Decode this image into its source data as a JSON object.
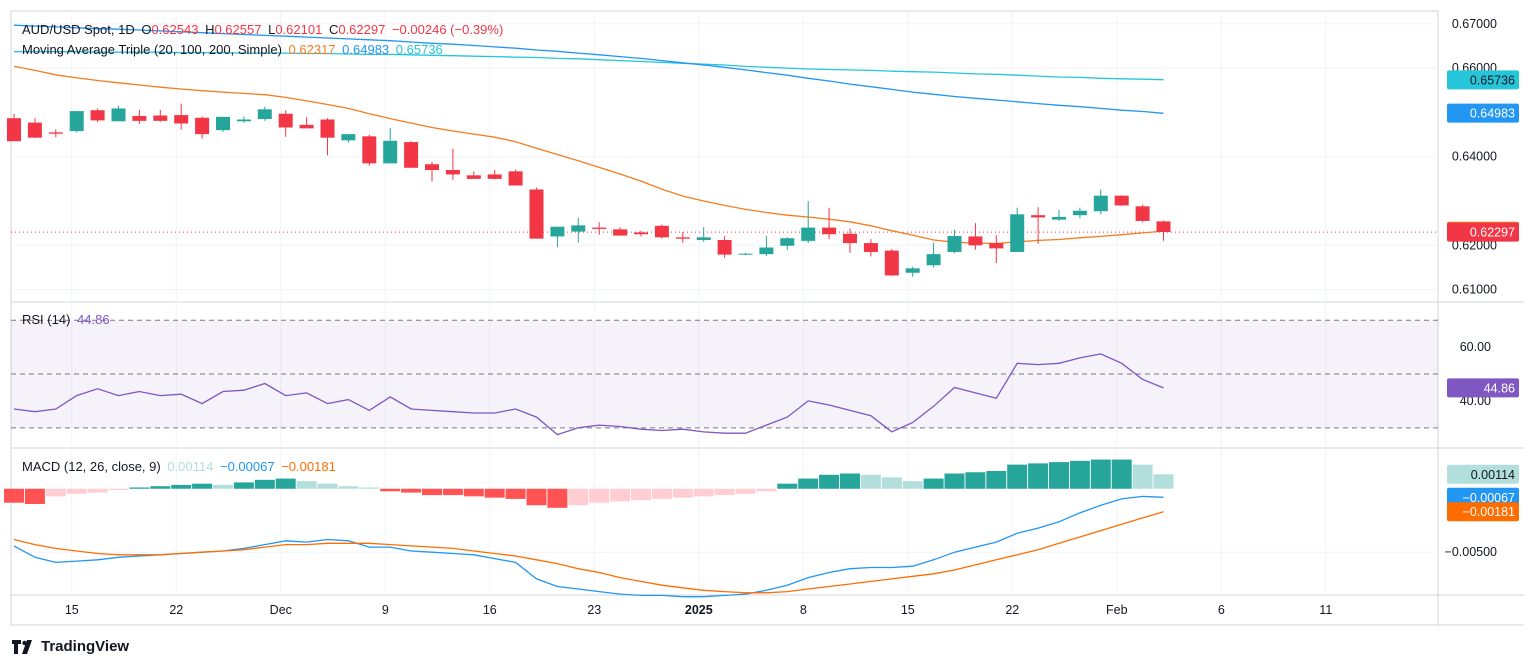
{
  "header": {
    "symbol": "AUD/USD Spot, 1D",
    "o_label": "O",
    "o_value": "0.62543",
    "h_label": "H",
    "h_value": "0.62557",
    "l_label": "L",
    "l_value": "0.62101",
    "c_label": "C",
    "c_value": "0.62297",
    "change": "−0.00246 (−0.39%)",
    "ma_label": "Moving Average Triple (20, 100, 200, Simple)",
    "ma20": "0.62317",
    "ma100": "0.64983",
    "ma200": "0.65736",
    "rsi_label": "RSI (14)",
    "rsi_value": "44.86",
    "macd_label": "MACD (12, 26, close, 9)",
    "macd_hist": "0.00114",
    "macd_line": "−0.00067",
    "macd_signal": "−0.00181"
  },
  "brand": {
    "name": "TradingView"
  },
  "colors": {
    "up": "#26a69a",
    "down": "#f23645",
    "ma20": "#f57c1f",
    "ma100": "#2196f3",
    "ma200": "#26c6da",
    "rsi": "#7e57c2",
    "macd": "#2196f3",
    "signal": "#ff6d00",
    "hist_up_strong": "#26a69a",
    "hist_up_weak": "#b2dfdb",
    "hist_down_strong": "#ff5252",
    "hist_down_weak": "#ffcdd2"
  },
  "chart_data": [
    {
      "type": "candlestick",
      "title": "AUD/USD Spot, 1D",
      "x_ticks": [
        "15",
        "22",
        "Dec",
        "9",
        "16",
        "23",
        "2025",
        "8",
        "15",
        "22",
        "Feb",
        "6",
        "11"
      ],
      "y_ticks": [
        "0.67000",
        "0.66000",
        "0.64000",
        "0.62000",
        "0.61000"
      ],
      "ylim": [
        0.6072,
        0.6729
      ],
      "ohlc": [
        [
          0.6487,
          0.6497,
          0.6438,
          0.6435
        ],
        [
          0.6477,
          0.6487,
          0.6442,
          0.6443
        ],
        [
          0.6455,
          0.6462,
          0.6444,
          0.6452
        ],
        [
          0.6458,
          0.6502,
          0.6455,
          0.6503
        ],
        [
          0.6505,
          0.6509,
          0.6478,
          0.6482
        ],
        [
          0.648,
          0.6515,
          0.6483,
          0.6509
        ],
        [
          0.6492,
          0.6506,
          0.6474,
          0.6481
        ],
        [
          0.6493,
          0.6506,
          0.6479,
          0.6481
        ],
        [
          0.6494,
          0.652,
          0.6461,
          0.6475
        ],
        [
          0.6488,
          0.6491,
          0.6441,
          0.6451
        ],
        [
          0.646,
          0.649,
          0.6456,
          0.649
        ],
        [
          0.648,
          0.6491,
          0.6476,
          0.6484
        ],
        [
          0.6485,
          0.6513,
          0.6481,
          0.6507
        ],
        [
          0.6497,
          0.6505,
          0.6445,
          0.6466
        ],
        [
          0.6472,
          0.6489,
          0.6466,
          0.6464
        ],
        [
          0.6484,
          0.6487,
          0.6403,
          0.6443
        ],
        [
          0.6437,
          0.6451,
          0.6432,
          0.6451
        ],
        [
          0.6446,
          0.645,
          0.638,
          0.6385
        ],
        [
          0.6385,
          0.6465,
          0.6385,
          0.6436
        ],
        [
          0.6433,
          0.6435,
          0.6379,
          0.6375
        ],
        [
          0.6383,
          0.6388,
          0.6344,
          0.637
        ],
        [
          0.637,
          0.6418,
          0.6348,
          0.636
        ],
        [
          0.6358,
          0.6367,
          0.6352,
          0.635
        ],
        [
          0.636,
          0.637,
          0.6349,
          0.635
        ],
        [
          0.6367,
          0.6371,
          0.6337,
          0.6335
        ],
        [
          0.6326,
          0.633,
          0.622,
          0.6215
        ],
        [
          0.622,
          0.6236,
          0.6196,
          0.6242
        ],
        [
          0.6231,
          0.6262,
          0.6206,
          0.6245
        ],
        [
          0.624,
          0.6252,
          0.6224,
          0.6237
        ],
        [
          0.6236,
          0.6241,
          0.6222,
          0.6222
        ],
        [
          0.6229,
          0.6233,
          0.622,
          0.6225
        ],
        [
          0.6244,
          0.6247,
          0.6215,
          0.6218
        ],
        [
          0.6218,
          0.623,
          0.6206,
          0.6215
        ],
        [
          0.6212,
          0.6241,
          0.6208,
          0.6218
        ],
        [
          0.6212,
          0.6221,
          0.6172,
          0.6179
        ],
        [
          0.6181,
          0.6183,
          0.6178,
          0.6181
        ],
        [
          0.618,
          0.6221,
          0.6176,
          0.6195
        ],
        [
          0.6199,
          0.6218,
          0.619,
          0.6216
        ],
        [
          0.621,
          0.63,
          0.6205,
          0.624
        ],
        [
          0.624,
          0.6285,
          0.6214,
          0.6225
        ],
        [
          0.6226,
          0.6238,
          0.6183,
          0.6205
        ],
        [
          0.6205,
          0.6214,
          0.6175,
          0.6185
        ],
        [
          0.6188,
          0.6192,
          0.6131,
          0.6132
        ],
        [
          0.6138,
          0.6152,
          0.6129,
          0.6148
        ],
        [
          0.6155,
          0.6206,
          0.615,
          0.618
        ],
        [
          0.6185,
          0.6235,
          0.6182,
          0.6221
        ],
        [
          0.622,
          0.625,
          0.619,
          0.62
        ],
        [
          0.6205,
          0.6223,
          0.616,
          0.6193
        ],
        [
          0.6185,
          0.6285,
          0.6185,
          0.627
        ],
        [
          0.6268,
          0.6286,
          0.6203,
          0.6263
        ],
        [
          0.6258,
          0.628,
          0.6255,
          0.6264
        ],
        [
          0.6268,
          0.6285,
          0.6261,
          0.6278
        ],
        [
          0.6277,
          0.6326,
          0.627,
          0.6312
        ],
        [
          0.6312,
          0.6313,
          0.6289,
          0.629
        ],
        [
          0.6288,
          0.6292,
          0.6252,
          0.6255
        ],
        [
          0.6254,
          0.6256,
          0.621,
          0.623
        ]
      ],
      "ma20": [
        0.6604,
        0.6595,
        0.6585,
        0.6578,
        0.6572,
        0.6567,
        0.6562,
        0.6557,
        0.6553,
        0.6549,
        0.6546,
        0.6543,
        0.654,
        0.6534,
        0.6526,
        0.6518,
        0.6509,
        0.6497,
        0.6486,
        0.6476,
        0.6466,
        0.6458,
        0.6451,
        0.6444,
        0.6434,
        0.6419,
        0.6405,
        0.6391,
        0.6376,
        0.6361,
        0.6345,
        0.6327,
        0.6311,
        0.63,
        0.629,
        0.6281,
        0.6274,
        0.6268,
        0.6264,
        0.6259,
        0.6253,
        0.6244,
        0.6233,
        0.6223,
        0.6212,
        0.6207,
        0.6205,
        0.6204,
        0.6208,
        0.6211,
        0.6213,
        0.6217,
        0.622,
        0.6224,
        0.6228,
        0.6232
      ],
      "ma100": [
        0.6697,
        0.6695,
        0.6693,
        0.6691,
        0.6689,
        0.6688,
        0.6686,
        0.6684,
        0.6682,
        0.668,
        0.6678,
        0.6676,
        0.6674,
        0.6672,
        0.667,
        0.6668,
        0.6666,
        0.6664,
        0.6662,
        0.6659,
        0.6656,
        0.6654,
        0.6651,
        0.6648,
        0.6645,
        0.6641,
        0.6638,
        0.6634,
        0.663,
        0.6626,
        0.6622,
        0.6617,
        0.6612,
        0.6607,
        0.6602,
        0.6596,
        0.659,
        0.6584,
        0.6577,
        0.6571,
        0.6564,
        0.6558,
        0.6552,
        0.6546,
        0.6541,
        0.6536,
        0.6532,
        0.6528,
        0.6524,
        0.652,
        0.6516,
        0.6513,
        0.6509,
        0.6505,
        0.6502,
        0.6498
      ],
      "ma200": [
        0.6637,
        0.6637,
        0.6637,
        0.6637,
        0.6636,
        0.6636,
        0.6636,
        0.6636,
        0.6635,
        0.6635,
        0.6635,
        0.6634,
        0.6634,
        0.6634,
        0.6633,
        0.6633,
        0.6632,
        0.6631,
        0.6631,
        0.663,
        0.6629,
        0.6628,
        0.6627,
        0.6626,
        0.6625,
        0.6624,
        0.6622,
        0.6621,
        0.6619,
        0.6617,
        0.6615,
        0.6613,
        0.6611,
        0.6609,
        0.6607,
        0.6604,
        0.6602,
        0.66,
        0.6598,
        0.6597,
        0.6596,
        0.6595,
        0.6593,
        0.6592,
        0.6591,
        0.6589,
        0.6587,
        0.6586,
        0.6584,
        0.6582,
        0.658,
        0.6579,
        0.6577,
        0.6576,
        0.6575,
        0.6574
      ],
      "last_price": 0.62297
    },
    {
      "type": "line",
      "title": "RSI (14)",
      "y_ticks": [
        "60.00",
        "40.00"
      ],
      "ylim": [
        22.5,
        76.8
      ],
      "bands": [
        70,
        50,
        30
      ],
      "values": [
        37.0,
        36.0,
        37.0,
        42.0,
        44.5,
        42.0,
        43.5,
        42.0,
        42.5,
        39.0,
        43.5,
        44.0,
        46.5,
        42.0,
        43.0,
        39.0,
        40.5,
        36.5,
        41.5,
        37.0,
        36.5,
        36.0,
        35.5,
        35.5,
        37.0,
        34.0,
        27.5,
        30.0,
        31.0,
        30.5,
        29.5,
        29.0,
        29.5,
        28.5,
        28.0,
        28.0,
        31.0,
        34.0,
        40.0,
        38.5,
        36.5,
        34.5,
        28.5,
        32.0,
        38.0,
        45.0,
        43.0,
        41.0,
        54.0,
        53.5,
        54.0,
        56.0,
        57.5,
        54.0,
        48.0,
        44.86
      ]
    },
    {
      "type": "bar",
      "title": "MACD (12, 26, close, 9)",
      "y_ticks": [
        "−0.00500"
      ],
      "ylim": [
        -0.00837,
        0.00321
      ],
      "histogram": [
        -0.0011,
        -0.0012,
        -0.0006,
        -0.0004,
        -0.0003,
        -0.0001,
        0.0001,
        0.0002,
        0.0003,
        0.0004,
        0.0003,
        0.0005,
        0.0007,
        0.0008,
        0.0006,
        0.0004,
        0.0002,
        0.0001,
        -0.0002,
        -0.0003,
        -0.0005,
        -0.0005,
        -0.0006,
        -0.0007,
        -0.0008,
        -0.0013,
        -0.0015,
        -0.0013,
        -0.0011,
        -0.001,
        -0.0009,
        -0.0008,
        -0.0007,
        -0.0006,
        -0.0005,
        -0.0004,
        -0.0002,
        0.0004,
        0.0008,
        0.0011,
        0.0012,
        0.0011,
        0.0009,
        0.0006,
        0.0008,
        0.0012,
        0.0013,
        0.0014,
        0.0019,
        0.002,
        0.0021,
        0.0022,
        0.0023,
        0.0023,
        0.0019,
        0.00114
      ],
      "macd": [
        -0.0045,
        -0.0054,
        -0.0058,
        -0.0057,
        -0.0056,
        -0.0054,
        -0.0053,
        -0.0052,
        -0.0051,
        -0.005,
        -0.0049,
        -0.0047,
        -0.0044,
        -0.0041,
        -0.0042,
        -0.004,
        -0.0041,
        -0.0046,
        -0.0046,
        -0.0049,
        -0.005,
        -0.0051,
        -0.0052,
        -0.0055,
        -0.0058,
        -0.0071,
        -0.0077,
        -0.0079,
        -0.0081,
        -0.0083,
        -0.0084,
        -0.0084,
        -0.0085,
        -0.0085,
        -0.0084,
        -0.0083,
        -0.008,
        -0.0076,
        -0.007,
        -0.0066,
        -0.0063,
        -0.0062,
        -0.0062,
        -0.0061,
        -0.0056,
        -0.005,
        -0.0046,
        -0.0042,
        -0.0035,
        -0.0031,
        -0.0026,
        -0.0019,
        -0.0013,
        -0.0008,
        -0.0006,
        -0.00067
      ],
      "signal": [
        -0.004,
        -0.0044,
        -0.0047,
        -0.0049,
        -0.0051,
        -0.0052,
        -0.0052,
        -0.0052,
        -0.0051,
        -0.005,
        -0.0049,
        -0.0048,
        -0.0046,
        -0.0044,
        -0.0044,
        -0.0043,
        -0.0043,
        -0.0043,
        -0.0044,
        -0.0045,
        -0.0046,
        -0.0047,
        -0.0049,
        -0.0051,
        -0.0053,
        -0.0056,
        -0.0059,
        -0.0063,
        -0.0066,
        -0.007,
        -0.0073,
        -0.0076,
        -0.0078,
        -0.008,
        -0.0081,
        -0.0082,
        -0.0082,
        -0.0081,
        -0.0079,
        -0.0077,
        -0.0075,
        -0.0073,
        -0.0071,
        -0.0069,
        -0.0067,
        -0.0064,
        -0.006,
        -0.0056,
        -0.0052,
        -0.0048,
        -0.0043,
        -0.0038,
        -0.0033,
        -0.0028,
        -0.0023,
        -0.00181
      ]
    }
  ]
}
